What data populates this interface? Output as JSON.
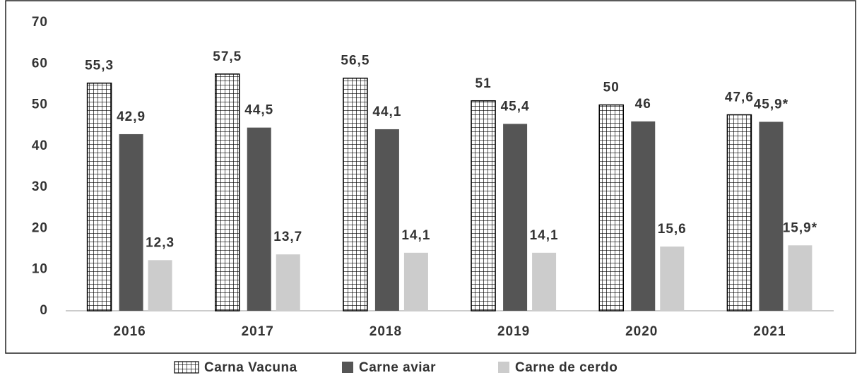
{
  "chart_data": {
    "type": "bar",
    "categories": [
      "2016",
      "2017",
      "2018",
      "2019",
      "2020",
      "2021"
    ],
    "series": [
      {
        "name": "Carna Vacuna",
        "color": "#ffffff",
        "pattern": "grid",
        "values": [
          55.3,
          57.5,
          56.5,
          51,
          50,
          47.6
        ],
        "value_labels": [
          "55,3",
          "57,5",
          "56,5",
          "51",
          "50",
          "47,6"
        ]
      },
      {
        "name": "Carne aviar",
        "color": "#555555",
        "values": [
          42.9,
          44.5,
          44.1,
          45.4,
          46,
          45.9
        ],
        "value_labels": [
          "42,9",
          "44,5",
          "44,1",
          "45,4",
          "46",
          "45,9*"
        ]
      },
      {
        "name": "Carne de cerdo",
        "color": "#cccccc",
        "values": [
          12.3,
          13.7,
          14.1,
          14.1,
          15.6,
          15.9
        ],
        "value_labels": [
          "12,3",
          "13,7",
          "14,1",
          "14,1",
          "15,6",
          "15,9*"
        ]
      }
    ],
    "ylim": [
      0,
      70
    ],
    "yticks": [
      0,
      10,
      20,
      30,
      40,
      50,
      60,
      70
    ],
    "grid": false,
    "legend": "bottom"
  }
}
